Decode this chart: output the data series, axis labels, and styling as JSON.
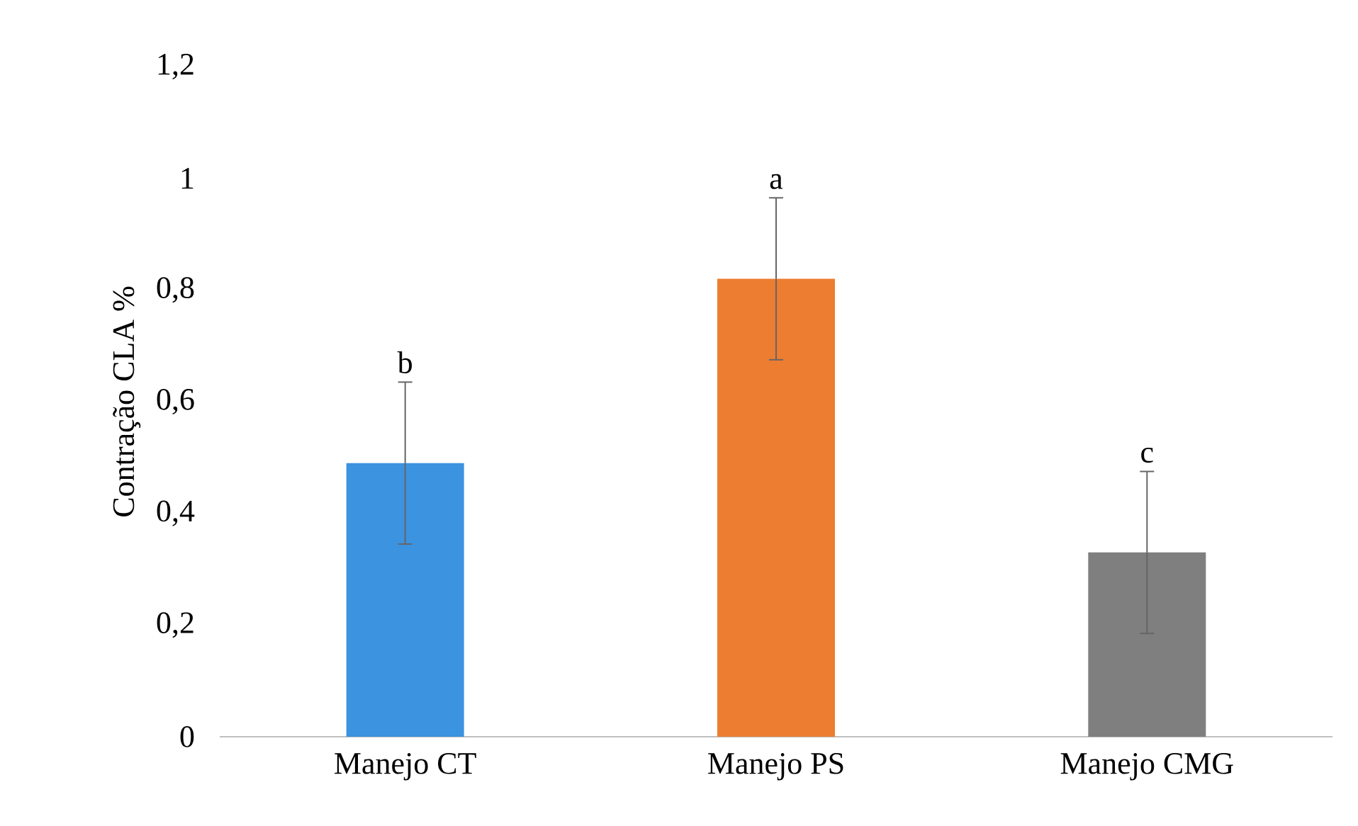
{
  "chart_data": {
    "type": "bar",
    "ylabel": "Contração CLA %",
    "categories": [
      "Manejo CT",
      "Manejo PS",
      "Manejo CMG"
    ],
    "values": [
      0.49,
      0.82,
      0.33
    ],
    "colors": [
      "#3c93e0",
      "#ed7d31",
      "#7f7f7f"
    ],
    "errors": [
      0.145,
      0.145,
      0.145
    ],
    "ylim": [
      0,
      1.2
    ],
    "yticks": [
      0,
      {
        "value": 0.2,
        "label": "0,2"
      },
      {
        "value": 0.4,
        "label": "0,4"
      },
      {
        "value": 0.6,
        "label": "0,6"
      },
      {
        "value": 0.8,
        "label": "0,8"
      },
      1,
      {
        "value": 1.2,
        "label": "1,2"
      }
    ],
    "annotations": [
      "b",
      "a",
      "c"
    ],
    "grid": false
  }
}
